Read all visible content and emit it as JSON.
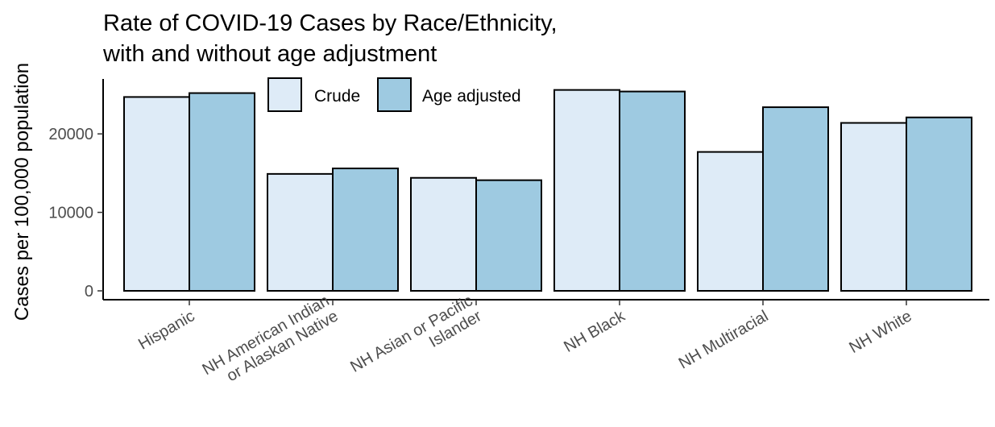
{
  "chart_data": {
    "type": "bar",
    "title_lines": [
      "Rate of COVID-19 Cases by Race/Ethnicity,",
      "with and without age adjustment"
    ],
    "xlabel": "",
    "ylabel": "Cases per 100,000 population",
    "categories": [
      [
        "Hispanic"
      ],
      [
        "NH American Indian",
        "or Alaskan Native"
      ],
      [
        "NH Asian or Pacific",
        "Islander"
      ],
      [
        "NH Black"
      ],
      [
        "NH Multiracial"
      ],
      [
        "NH White"
      ]
    ],
    "series": [
      {
        "name": "Crude",
        "color": "#deebf7",
        "values": [
          24700,
          14900,
          14400,
          25600,
          17700,
          21400
        ]
      },
      {
        "name": "Age adjusted",
        "color": "#9ecae1",
        "values": [
          25200,
          15600,
          14100,
          25400,
          23400,
          22100
        ]
      }
    ],
    "ylim": [
      0,
      27000
    ],
    "yticks": [
      0,
      10000,
      20000
    ],
    "ytick_labels": [
      "0",
      "10000",
      "20000"
    ],
    "legend_position": "top-center",
    "grid": false,
    "bar_outline": "#000000"
  }
}
